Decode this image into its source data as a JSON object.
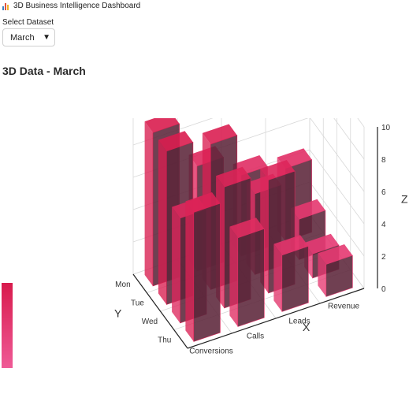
{
  "app": {
    "title": "3D Business Intelligence Dashboard"
  },
  "dataset": {
    "label": "Select Dataset",
    "selected": "March",
    "arrow_icon": "triangle-down"
  },
  "chart": {
    "heading": "3D Data - March"
  },
  "chart_data": {
    "type": "bar3d",
    "title": "3D Data - March",
    "x_categories": [
      "Conversions",
      "Calls",
      "Leads",
      "Revenue"
    ],
    "y_categories": [
      "Mon",
      "Tue",
      "Wed",
      "Thu"
    ],
    "xlabel": "X",
    "ylabel": "Y",
    "zlabel": "Z",
    "zlim": [
      0,
      10
    ],
    "z_ticks": [
      0,
      2,
      4,
      6,
      8,
      10
    ],
    "values": [
      [
        9.5,
        6.5,
        5.0,
        4.5
      ],
      [
        9.5,
        9.0,
        5.0,
        2.5
      ],
      [
        6.5,
        7.5,
        7.0,
        1.5
      ],
      [
        8.0,
        5.5,
        3.5,
        2.0
      ]
    ],
    "colorscale": [
      "#e8407a",
      "#d81b4d"
    ],
    "grid": true,
    "colorbar": "left"
  }
}
